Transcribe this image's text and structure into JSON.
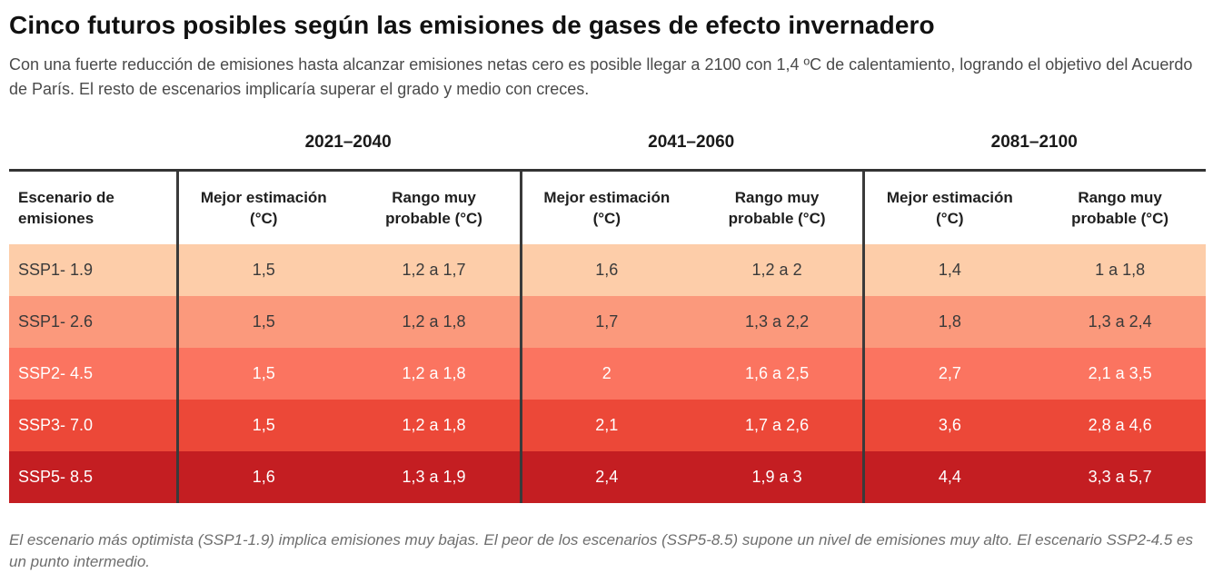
{
  "header": {
    "title": "Cinco futuros posibles según las emisiones de gases de efecto invernadero",
    "subtitle": "Con una fuerte reducción de emisiones hasta alcanzar emisiones netas cero es posible llegar a 2100 con 1,4 ºC de calentamiento, logrando el objetivo del Acuerdo de París. El resto de escenarios implicaría superar el grado y medio con creces."
  },
  "table": {
    "periods": [
      "2021–2040",
      "2041–2060",
      "2081–2100"
    ],
    "columns": {
      "scenario": "Escenario de emisiones",
      "best": "Mejor estimación (°C)",
      "range": "Rango muy probable (°C)"
    },
    "rows": [
      {
        "scenario": "SSP1- 1.9",
        "bg": "#fdcda9",
        "fg": "#3a3a3a",
        "values": [
          "1,5",
          "1,2 a 1,7",
          "1,6",
          "1,2 a 2",
          "1,4",
          "1 a 1,8"
        ]
      },
      {
        "scenario": "SSP1- 2.6",
        "bg": "#fb997c",
        "fg": "#3a3a3a",
        "values": [
          "1,5",
          "1,2 a 1,8",
          "1,7",
          "1,3 a 2,2",
          "1,8",
          "1,3 a 2,4"
        ]
      },
      {
        "scenario": "SSP2- 4.5",
        "bg": "#fb7460",
        "fg": "#ffffff",
        "values": [
          "1,5",
          "1,2 a 1,8",
          "2",
          "1,6 a 2,5",
          "2,7",
          "2,1 a 3,5"
        ]
      },
      {
        "scenario": "SSP3- 7.0",
        "bg": "#ec4838",
        "fg": "#ffffff",
        "values": [
          "1,5",
          "1,2 a 1,8",
          "2,1",
          "1,7 a 2,6",
          "3,6",
          "2,8 a 4,6"
        ]
      },
      {
        "scenario": "SSP5- 8.5",
        "bg": "#c41e22",
        "fg": "#ffffff",
        "values": [
          "1,6",
          "1,3 a 1,9",
          "2,4",
          "1,9 a 3",
          "4,4",
          "3,3 a 5,7"
        ]
      }
    ]
  },
  "footer": {
    "note": "El escenario más optimista (SSP1-1.9) implica emisiones muy bajas. El peor de los escenarios (SSP5-8.5) supone un nivel de emisiones muy alto. El escenario SSP2-4.5 es un punto intermedio."
  },
  "chart_data": {
    "type": "table",
    "title": "Cinco futuros posibles según las emisiones de gases de efecto invernadero",
    "column_groups": [
      "2021–2040",
      "2041–2060",
      "2081–2100"
    ],
    "columns": [
      "Escenario de emisiones",
      "Mejor estimación (°C) 2021–2040",
      "Rango muy probable (°C) 2021–2040",
      "Mejor estimación (°C) 2041–2060",
      "Rango muy probable (°C) 2041–2060",
      "Mejor estimación (°C) 2081–2100",
      "Rango muy probable (°C) 2081–2100"
    ],
    "rows": [
      [
        "SSP1- 1.9",
        "1,5",
        "1,2 a 1,7",
        "1,6",
        "1,2 a 2",
        "1,4",
        "1 a 1,8"
      ],
      [
        "SSP1- 2.6",
        "1,5",
        "1,2 a 1,8",
        "1,7",
        "1,3 a 2,2",
        "1,8",
        "1,3 a 2,4"
      ],
      [
        "SSP2- 4.5",
        "1,5",
        "1,2 a 1,8",
        "2",
        "1,6 a 2,5",
        "2,7",
        "2,1 a 3,5"
      ],
      [
        "SSP3- 7.0",
        "1,5",
        "1,2 a 1,8",
        "2,1",
        "1,7 a 2,6",
        "3,6",
        "2,8 a 4,6"
      ],
      [
        "SSP5- 8.5",
        "1,6",
        "1,3 a 1,9",
        "2,4",
        "1,9 a 3",
        "4,4",
        "3,3 a 5,7"
      ]
    ],
    "row_colors": [
      "#fdcda9",
      "#fb997c",
      "#fb7460",
      "#ec4838",
      "#c41e22"
    ]
  }
}
